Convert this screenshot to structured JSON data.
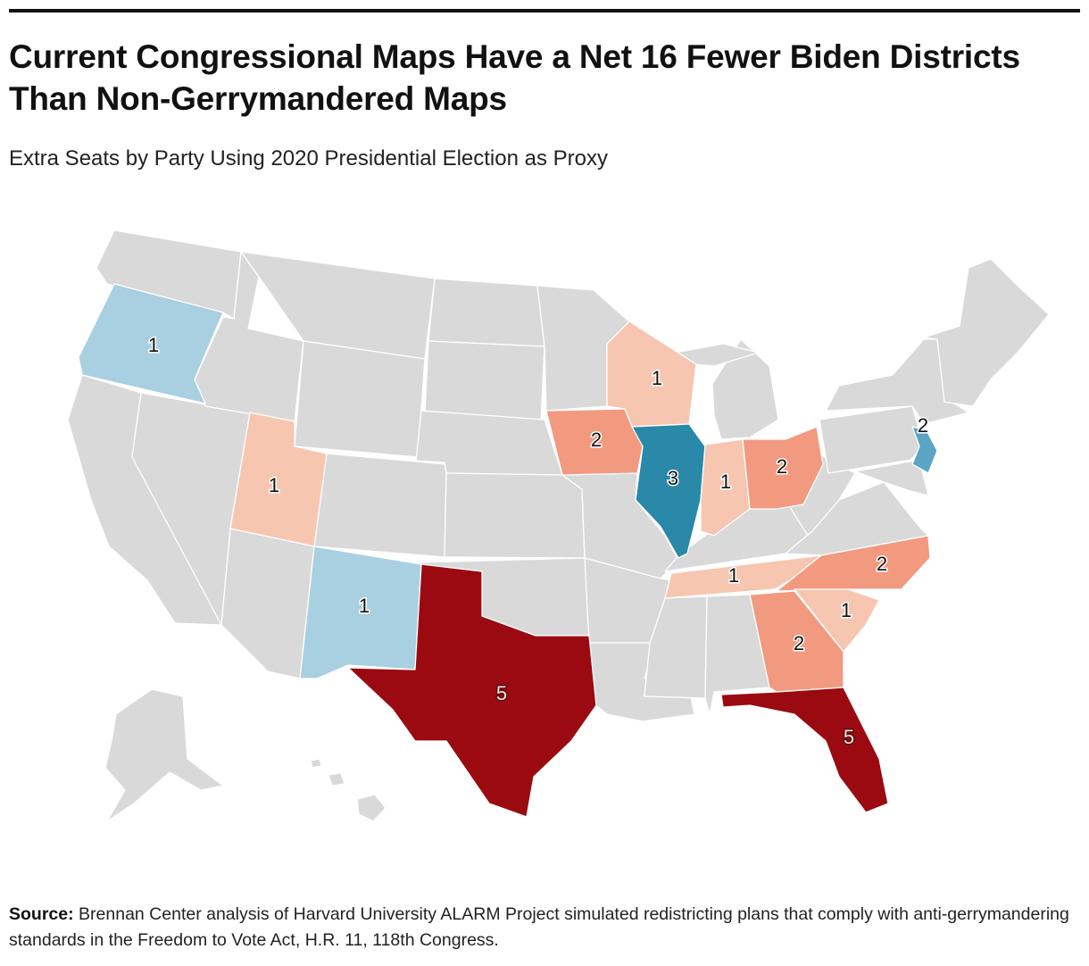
{
  "header": {
    "title": "Current Congressional Maps Have a Net 16 Fewer Biden Districts Than Non-Gerrymandered Maps",
    "subtitle": "Extra Seats by Party Using 2020 Presidential Election as Proxy"
  },
  "colors": {
    "base": "#d9d9d9",
    "dem_1": "#a9d0e1",
    "dem_2": "#5aa4c6",
    "dem_3": "#2a88a8",
    "rep_1": "#f7c6b1",
    "rep_2": "#f29a7f",
    "rep_5": "#9b0a10"
  },
  "map": {
    "states": [
      {
        "state": "Oregon",
        "party": "Democratic",
        "extra_seats": "1"
      },
      {
        "state": "New Mexico",
        "party": "Democratic",
        "extra_seats": "1"
      },
      {
        "state": "Illinois",
        "party": "Democratic",
        "extra_seats": "3"
      },
      {
        "state": "New Jersey",
        "party": "Democratic",
        "extra_seats": "2"
      },
      {
        "state": "Utah",
        "party": "Republican",
        "extra_seats": "1"
      },
      {
        "state": "Texas",
        "party": "Republican",
        "extra_seats": "5"
      },
      {
        "state": "Iowa",
        "party": "Republican",
        "extra_seats": "2"
      },
      {
        "state": "Wisconsin",
        "party": "Republican",
        "extra_seats": "1"
      },
      {
        "state": "Indiana",
        "party": "Republican",
        "extra_seats": "1"
      },
      {
        "state": "Ohio",
        "party": "Republican",
        "extra_seats": "2"
      },
      {
        "state": "Tennessee",
        "party": "Republican",
        "extra_seats": "1"
      },
      {
        "state": "North Carolina",
        "party": "Republican",
        "extra_seats": "2"
      },
      {
        "state": "South Carolina",
        "party": "Republican",
        "extra_seats": "1"
      },
      {
        "state": "Georgia",
        "party": "Republican",
        "extra_seats": "2"
      },
      {
        "state": "Florida",
        "party": "Republican",
        "extra_seats": "5"
      }
    ]
  },
  "footer": {
    "source_label": "Source:",
    "source_text": "Brennan Center analysis of Harvard University ALARM Project simulated redistricting plans that comply with anti-gerrymandering standards in the Freedom to Vote Act, H.R. 11, 118th Congress."
  }
}
